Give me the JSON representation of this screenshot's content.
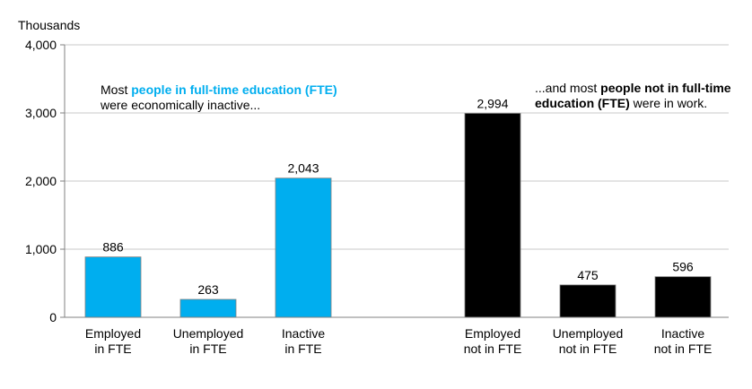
{
  "chart_data": {
    "type": "bar",
    "ylabel": "Thousands",
    "ylim": [
      0,
      4000
    ],
    "yticks": [
      "0",
      "1,000",
      "2,000",
      "3,000",
      "4,000"
    ],
    "grid": true,
    "categories": [
      [
        "Employed",
        "in FTE"
      ],
      [
        "Unemployed",
        "in FTE"
      ],
      [
        "Inactive",
        "in FTE"
      ],
      [
        "Employed",
        "not in FTE"
      ],
      [
        "Unemployed",
        "not in FTE"
      ],
      [
        "Inactive",
        "not in FTE"
      ]
    ],
    "values": [
      886,
      263,
      2043,
      2994,
      475,
      596
    ],
    "value_labels": [
      "886",
      "263",
      "2,043",
      "2,994",
      "475",
      "596"
    ],
    "colors": [
      "#00aeef",
      "#00aeef",
      "#00aeef",
      "#000000",
      "#000000",
      "#000000"
    ],
    "annotations": {
      "left": {
        "prefix": "Most ",
        "highlight": "people in full-time education (FTE)",
        "line2": "were economically inactive..."
      },
      "right": {
        "prefix": "...and most ",
        "highlight": "people not in full-time",
        "highlight2": "education (FTE)",
        "suffix": " were in work."
      }
    }
  }
}
